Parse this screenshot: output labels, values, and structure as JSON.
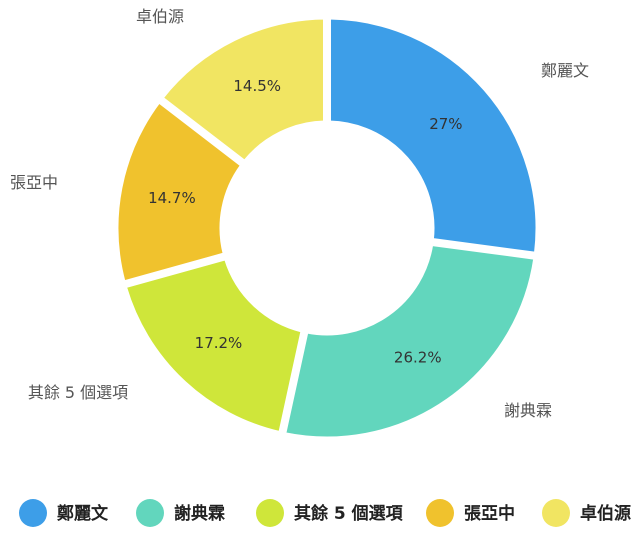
{
  "chart_data": {
    "type": "pie",
    "variant": "donut",
    "title": "",
    "legend_position": "bottom",
    "slices": [
      {
        "name": "鄭麗文",
        "value": 27,
        "label": "27%",
        "color": "#3d9ee8"
      },
      {
        "name": "謝典霖",
        "value": 26.2,
        "label": "26.2%",
        "color": "#62d6bd"
      },
      {
        "name": "其餘 5 個選項",
        "value": 17.2,
        "label": "17.2%",
        "color": "#cfe63a"
      },
      {
        "name": "張亞中",
        "value": 14.7,
        "label": "14.7%",
        "color": "#f0c22d"
      },
      {
        "name": "卓伯源",
        "value": 14.5,
        "label": "14.5%",
        "color": "#f1e562"
      }
    ]
  }
}
